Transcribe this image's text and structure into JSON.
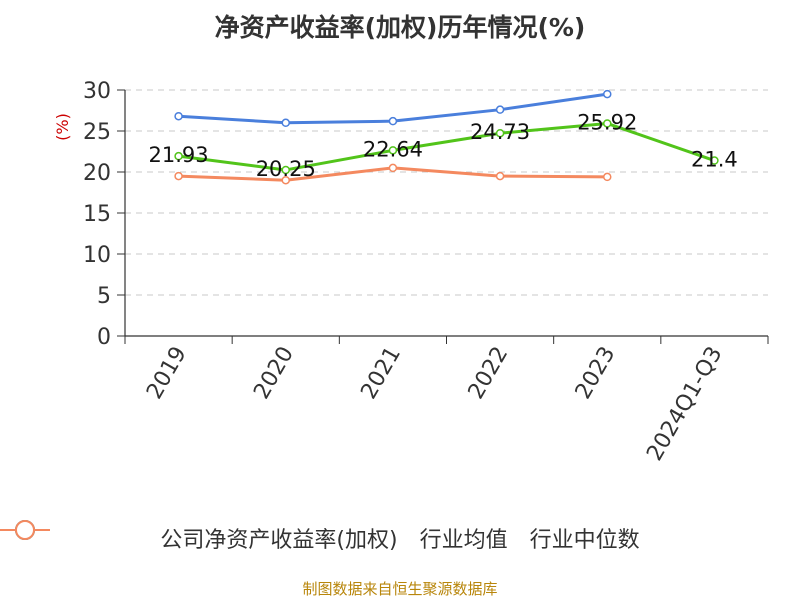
{
  "chart_data": {
    "type": "line",
    "title": "净资产收益率(加权)历年情况(%)",
    "ylabel": "(%)",
    "categories": [
      "2019",
      "2020",
      "2021",
      "2022",
      "2023",
      "2024Q1-Q3"
    ],
    "ylim": [
      0,
      30
    ],
    "yticks": [
      0,
      5,
      10,
      15,
      20,
      25,
      30
    ],
    "grid": true,
    "legend_position": "bottom",
    "series": [
      {
        "name": "公司净资产收益率(加权)",
        "color": "#52c41a",
        "values": [
          21.93,
          20.25,
          22.64,
          24.73,
          25.92,
          21.4
        ],
        "labels": [
          "21.93",
          "20.25",
          "22.64",
          "24.73",
          "25.92",
          "21.4"
        ]
      },
      {
        "name": "行业均值",
        "color": "#4a7fdc",
        "values": [
          26.8,
          26.0,
          26.2,
          27.6,
          29.5,
          null
        ]
      },
      {
        "name": "行业中位数",
        "color": "#f4895f",
        "values": [
          19.5,
          19.0,
          20.5,
          19.5,
          19.4,
          null
        ]
      }
    ]
  },
  "footer": "制图数据来自恒生聚源数据库"
}
